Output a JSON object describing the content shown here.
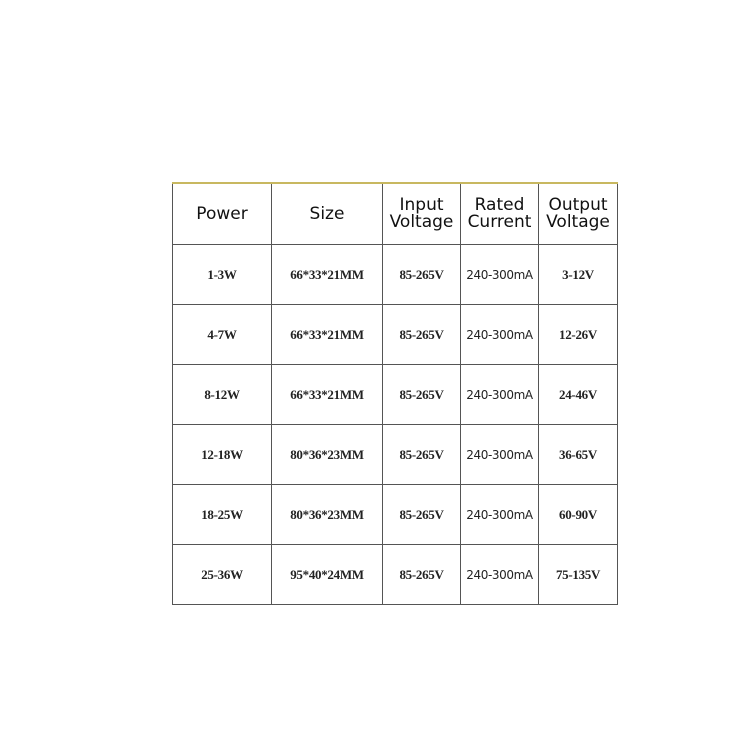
{
  "table": {
    "headers": [
      "Power",
      "Size",
      "Input Voltage",
      "Rated Current",
      "Output Voltage"
    ],
    "rows": [
      [
        "1-3W",
        "66*33*21MM",
        "85-265V",
        "240-300mA",
        "3-12V"
      ],
      [
        "4-7W",
        "66*33*21MM",
        "85-265V",
        "240-300mA",
        "12-26V"
      ],
      [
        "8-12W",
        "66*33*21MM",
        "85-265V",
        "240-300mA",
        "24-46V"
      ],
      [
        "12-18W",
        "80*36*23MM",
        "85-265V",
        "240-300mA",
        "36-65V"
      ],
      [
        "18-25W",
        "80*36*23MM",
        "85-265V",
        "240-300mA",
        "60-90V"
      ],
      [
        "25-36W",
        "95*40*24MM",
        "85-265V",
        "240-300mA",
        "75-135V"
      ]
    ]
  }
}
